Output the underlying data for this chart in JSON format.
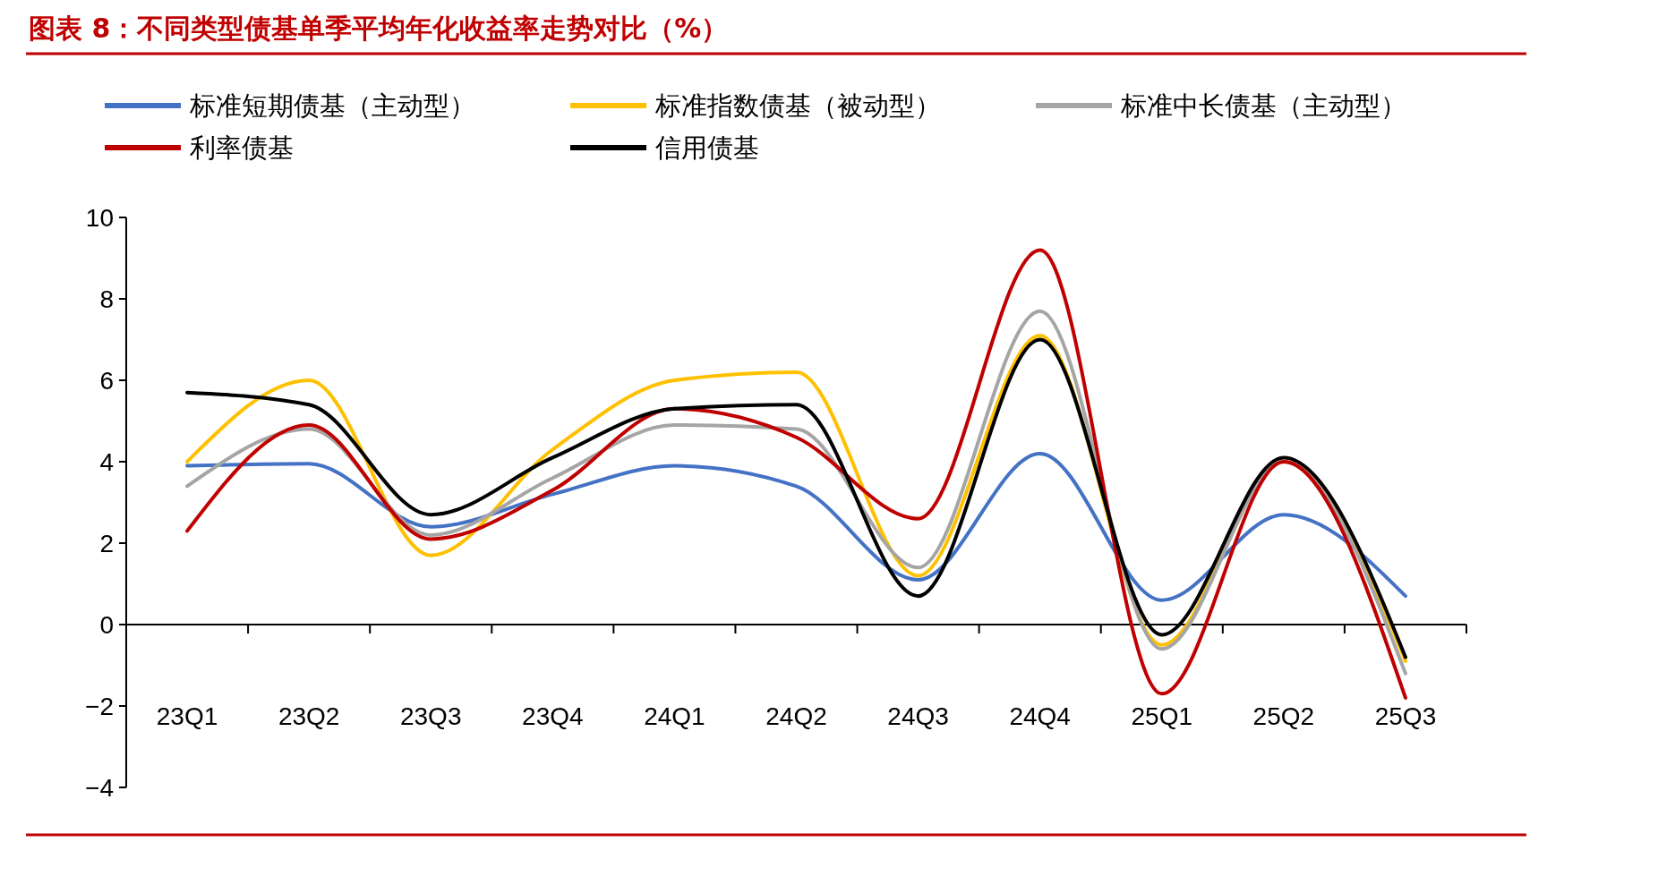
{
  "chart_data": {
    "type": "line",
    "title": "图表 8：不同类型债基单季平均年化收益率走势对比（%）",
    "categories": [
      "23Q1",
      "23Q2",
      "23Q3",
      "23Q4",
      "24Q1",
      "24Q2",
      "24Q3",
      "24Q4",
      "25Q1",
      "25Q2",
      "25Q3"
    ],
    "series": [
      {
        "name": "标准短期债基（主动型）",
        "color": "#4472c4",
        "values": [
          3.9,
          3.95,
          2.4,
          3.2,
          3.9,
          3.4,
          1.1,
          4.2,
          0.6,
          2.7,
          0.7
        ]
      },
      {
        "name": "标准指数债基（被动型）",
        "color": "#ffc000",
        "values": [
          4.0,
          6.0,
          1.7,
          4.3,
          6.0,
          6.2,
          1.2,
          7.1,
          -0.5,
          4.0,
          -0.9
        ]
      },
      {
        "name": "标准中长债基（主动型）",
        "color": "#a5a5a5",
        "values": [
          3.4,
          4.8,
          2.2,
          3.6,
          4.9,
          4.8,
          1.4,
          7.7,
          -0.6,
          4.0,
          -1.2
        ]
      },
      {
        "name": "利率债基",
        "color": "#c00000",
        "values": [
          2.3,
          4.9,
          2.1,
          3.3,
          5.3,
          4.6,
          2.6,
          9.2,
          -1.7,
          4.0,
          -1.8
        ]
      },
      {
        "name": "信用债基",
        "color": "#000000",
        "values": [
          5.7,
          5.4,
          2.7,
          4.1,
          5.3,
          5.4,
          0.7,
          7.0,
          -0.25,
          4.1,
          -0.8
        ]
      }
    ],
    "ylim": [
      -4,
      10
    ],
    "yticks": [
      {
        "value": -4,
        "label": "−4"
      },
      {
        "value": -2,
        "label": "−2"
      },
      0,
      2,
      4,
      6,
      8,
      10
    ],
    "legend": "top",
    "marker": "none",
    "line_style": "solid"
  }
}
